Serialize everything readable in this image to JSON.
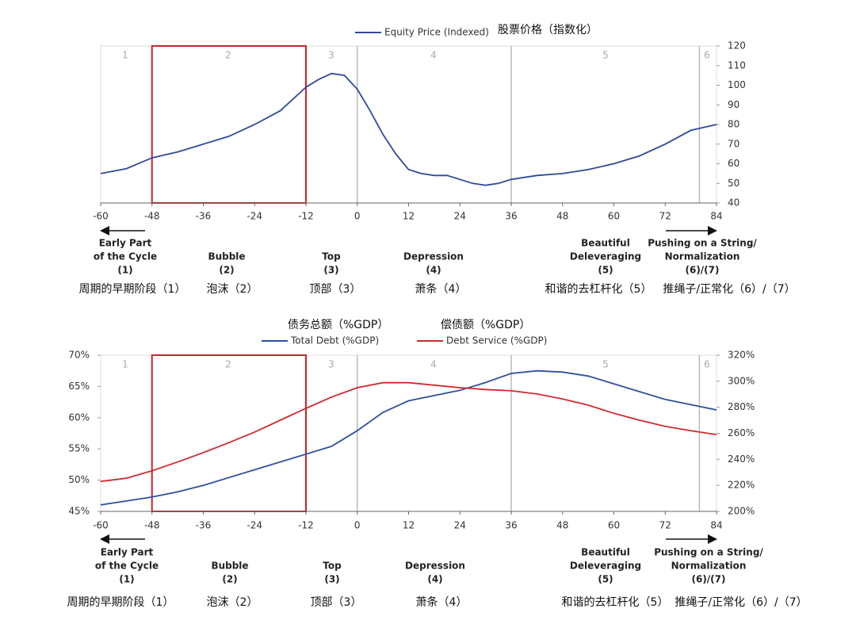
{
  "chart_data": [
    {
      "type": "line",
      "yaxis_position": "right",
      "x": [
        -60,
        -54,
        -48,
        -42,
        -36,
        -30,
        -24,
        -18,
        -12,
        -9,
        -6,
        -3,
        0,
        3,
        6,
        9,
        12,
        15,
        18,
        21,
        24,
        27,
        30,
        33,
        36,
        42,
        48,
        54,
        60,
        66,
        72,
        78,
        84
      ],
      "series": [
        {
          "name": "Equity Price (Indexed)",
          "color": "#2e4a9a",
          "values": [
            55,
            57.5,
            63,
            66,
            70,
            74,
            80,
            87,
            99,
            103,
            106,
            105,
            98,
            87,
            75,
            65,
            57,
            55,
            54,
            54,
            52,
            50,
            49,
            50,
            52,
            54,
            55,
            57,
            60,
            64,
            70,
            77,
            80
          ]
        }
      ],
      "legend_cn": [
        "股票价格（指数化）"
      ],
      "xlim": [
        -60,
        84
      ],
      "xticks": [
        -60,
        -48,
        -36,
        -24,
        -12,
        0,
        12,
        24,
        36,
        48,
        60,
        72,
        84
      ],
      "ylim": [
        40,
        120
      ],
      "yticks": [
        40,
        50,
        60,
        70,
        80,
        90,
        100,
        110,
        120
      ],
      "phase_boundaries": [
        0,
        36,
        80
      ],
      "highlight": [
        -48,
        -12
      ],
      "highlight_color": "#c8262c",
      "phases": [
        {
          "number": "1",
          "label": [
            "Early Part",
            "of the Cycle",
            "(1)"
          ],
          "label_cn": "周期的早期阶段（1）"
        },
        {
          "number": "2",
          "label": [
            "Bubble",
            "(2)"
          ],
          "label_cn": "泡沫（2）"
        },
        {
          "number": "3",
          "label": [
            "Top",
            "(3)"
          ],
          "label_cn": "顶部（3）"
        },
        {
          "number": "4",
          "label": [
            "Depression",
            "(4)"
          ],
          "label_cn": "萧条（4）"
        },
        {
          "number": "5",
          "label": [
            "Beautiful",
            "Deleveraging",
            "(5)"
          ],
          "label_cn": "和谐的去杠杆化（5）"
        },
        {
          "number": "6",
          "label": [
            "Pushing on a String/",
            "Normalization",
            "(6)/(7)"
          ],
          "label_cn": "推绳子/正常化（6）/（7）"
        }
      ]
    },
    {
      "type": "line",
      "x": [
        -60,
        -54,
        -48,
        -42,
        -36,
        -30,
        -24,
        -18,
        -12,
        -6,
        0,
        6,
        12,
        18,
        24,
        30,
        36,
        42,
        48,
        54,
        60,
        66,
        72,
        78,
        84
      ],
      "series": [
        {
          "name": "Total Debt (%GDP)",
          "color": "#2f4fa0",
          "axis": "y2",
          "values": [
            205,
            208,
            211,
            215,
            220,
            226,
            232,
            238,
            244,
            250,
            262,
            276,
            285,
            289,
            293,
            299,
            306,
            308,
            307,
            304,
            298,
            292,
            286,
            282,
            278
          ]
        },
        {
          "name": "Debt Service (%GDP)",
          "color": "#d02a2e",
          "values": [
            49.8,
            50.3,
            51.5,
            52.9,
            54.4,
            56,
            57.7,
            59.6,
            61.5,
            63.3,
            64.8,
            65.6,
            65.6,
            65.2,
            64.8,
            64.5,
            64.3,
            63.8,
            63,
            62,
            60.7,
            59.6,
            58.6,
            57.9,
            57.3
          ]
        }
      ],
      "legend_cn": [
        "债务总额（%GDP）",
        "偿债额（%GDP）"
      ],
      "xlim": [
        -60,
        84
      ],
      "xticks": [
        -60,
        -48,
        -36,
        -24,
        -12,
        0,
        12,
        24,
        36,
        48,
        60,
        72,
        84
      ],
      "ylim": [
        45,
        70
      ],
      "yticks": [
        {
          "value": 45,
          "label": "45%"
        },
        {
          "value": 50,
          "label": "50%"
        },
        {
          "value": 55,
          "label": "55%"
        },
        {
          "value": 60,
          "label": "60%"
        },
        {
          "value": 65,
          "label": "65%"
        },
        {
          "value": 70,
          "label": "70%"
        }
      ],
      "y2lim": [
        200,
        320
      ],
      "y2ticks": [
        {
          "value": 200,
          "label": "200%"
        },
        {
          "value": 220,
          "label": "220%"
        },
        {
          "value": 240,
          "label": "240%"
        },
        {
          "value": 260,
          "label": "260%"
        },
        {
          "value": 280,
          "label": "280%"
        },
        {
          "value": 300,
          "label": "300%"
        },
        {
          "value": 320,
          "label": "320%"
        }
      ],
      "phase_boundaries": [
        0,
        36,
        80
      ],
      "highlight": [
        -48,
        -12
      ],
      "highlight_color": "#c8262c",
      "phases": [
        {
          "number": "1",
          "label": [
            "Early Part",
            "of the Cycle",
            "(1)"
          ],
          "label_cn": "周期的早期阶段（1）"
        },
        {
          "number": "2",
          "label": [
            "Bubble",
            "(2)"
          ],
          "label_cn": "泡沫（2）"
        },
        {
          "number": "3",
          "label": [
            "Top",
            "(3)"
          ],
          "label_cn": "顶部（3）"
        },
        {
          "number": "4",
          "label": [
            "Depression",
            "(4)"
          ],
          "label_cn": "萧条（4）"
        },
        {
          "number": "5",
          "label": [
            "Beautiful",
            "Deleveraging",
            "(5)"
          ],
          "label_cn": "和谐的去杠杆化（5）"
        },
        {
          "number": "6",
          "label": [
            "Pushing on a String/",
            "Normalization",
            "(6)/(7)"
          ],
          "label_cn": "推绳子/正常化（6）/（7）"
        }
      ]
    }
  ]
}
